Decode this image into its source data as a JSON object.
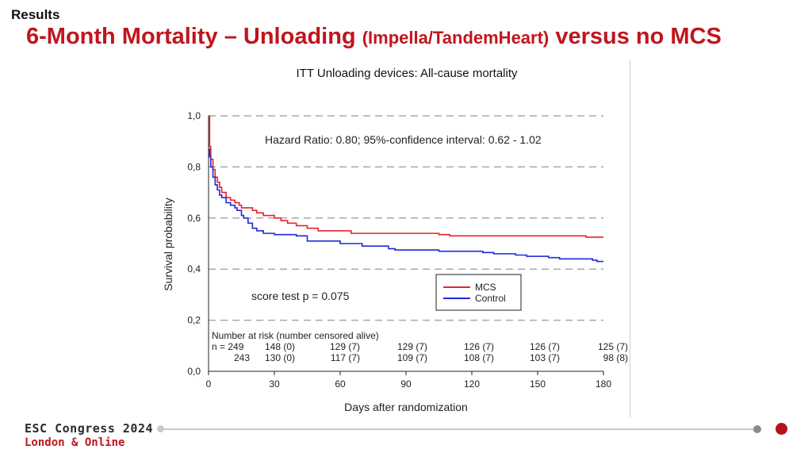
{
  "header": {
    "section": "Results",
    "title_main": "6-Month Mortality – Unloading",
    "title_paren": "(Impella/TandemHeart)",
    "title_end": "versus no MCS"
  },
  "footer": {
    "brand_line1": "ESC Congress 2024",
    "brand_line2": "London & Online",
    "colors": {
      "accent": "#c0151d",
      "dot_grey": "#8a8a8a",
      "line": "#c8c8c8"
    }
  },
  "chart_data": {
    "type": "line",
    "title": "ITT Unloading devices: All-cause mortality",
    "xlabel": "Days after randomization",
    "ylabel": "Survival probability",
    "xlim": [
      0,
      180
    ],
    "ylim": [
      0,
      1
    ],
    "x_ticks": [
      "0",
      "30",
      "60",
      "90",
      "120",
      "150",
      "180"
    ],
    "y_ticks": [
      "0,0",
      "0,2",
      "0,4",
      "0,6",
      "0,8",
      "1,0"
    ],
    "gridlines": "horizontal-dashed",
    "annotations": {
      "hazard_ratio": "Hazard Ratio: 0.80; 95%-confidence interval: 0.62 - 1.02",
      "score_test": "score test p = 0.075"
    },
    "legend": {
      "placement": "bottom-right",
      "entries": [
        "MCS",
        "Control"
      ]
    },
    "series": [
      {
        "name": "MCS",
        "color": "#e8222a",
        "points": [
          [
            0,
            1.0
          ],
          [
            0.5,
            0.88
          ],
          [
            1,
            0.83
          ],
          [
            2,
            0.79
          ],
          [
            3,
            0.76
          ],
          [
            4,
            0.74
          ],
          [
            5,
            0.72
          ],
          [
            6,
            0.7
          ],
          [
            8,
            0.68
          ],
          [
            10,
            0.67
          ],
          [
            12,
            0.66
          ],
          [
            14,
            0.65
          ],
          [
            15,
            0.64
          ],
          [
            20,
            0.63
          ],
          [
            22,
            0.62
          ],
          [
            25,
            0.61
          ],
          [
            30,
            0.6
          ],
          [
            33,
            0.59
          ],
          [
            36,
            0.58
          ],
          [
            40,
            0.57
          ],
          [
            45,
            0.56
          ],
          [
            50,
            0.55
          ],
          [
            60,
            0.55
          ],
          [
            65,
            0.54
          ],
          [
            90,
            0.54
          ],
          [
            100,
            0.54
          ],
          [
            105,
            0.535
          ],
          [
            110,
            0.53
          ],
          [
            140,
            0.53
          ],
          [
            170,
            0.53
          ],
          [
            172,
            0.525
          ],
          [
            180,
            0.525
          ]
        ]
      },
      {
        "name": "Control",
        "color": "#1f2ad8",
        "points": [
          [
            0,
            0.87
          ],
          [
            0.5,
            0.84
          ],
          [
            1,
            0.8
          ],
          [
            2,
            0.76
          ],
          [
            3,
            0.73
          ],
          [
            4,
            0.71
          ],
          [
            5,
            0.69
          ],
          [
            6,
            0.68
          ],
          [
            8,
            0.66
          ],
          [
            10,
            0.65
          ],
          [
            12,
            0.64
          ],
          [
            13,
            0.63
          ],
          [
            15,
            0.61
          ],
          [
            16,
            0.6
          ],
          [
            18,
            0.58
          ],
          [
            20,
            0.56
          ],
          [
            22,
            0.55
          ],
          [
            25,
            0.54
          ],
          [
            30,
            0.535
          ],
          [
            40,
            0.53
          ],
          [
            45,
            0.51
          ],
          [
            55,
            0.51
          ],
          [
            60,
            0.5
          ],
          [
            70,
            0.49
          ],
          [
            80,
            0.49
          ],
          [
            82,
            0.48
          ],
          [
            85,
            0.475
          ],
          [
            90,
            0.475
          ],
          [
            100,
            0.475
          ],
          [
            105,
            0.47
          ],
          [
            120,
            0.47
          ],
          [
            125,
            0.465
          ],
          [
            130,
            0.46
          ],
          [
            135,
            0.46
          ],
          [
            140,
            0.455
          ],
          [
            145,
            0.45
          ],
          [
            150,
            0.45
          ],
          [
            155,
            0.445
          ],
          [
            160,
            0.44
          ],
          [
            165,
            0.44
          ],
          [
            170,
            0.44
          ],
          [
            175,
            0.435
          ],
          [
            177,
            0.43
          ],
          [
            180,
            0.43
          ]
        ]
      }
    ],
    "risk_table": {
      "header": "Number at risk (number censored alive)",
      "rows": [
        {
          "prefix": "n = 249",
          "values": [
            "148 (0)",
            "129 (7)",
            "129 (7)",
            "126 (7)",
            "126 (7)",
            "125 (7)"
          ]
        },
        {
          "prefix": "243",
          "values": [
            "130 (0)",
            "117 (7)",
            "109 (7)",
            "108 (7)",
            "103 (7)",
            "98 (8)"
          ]
        }
      ]
    }
  }
}
